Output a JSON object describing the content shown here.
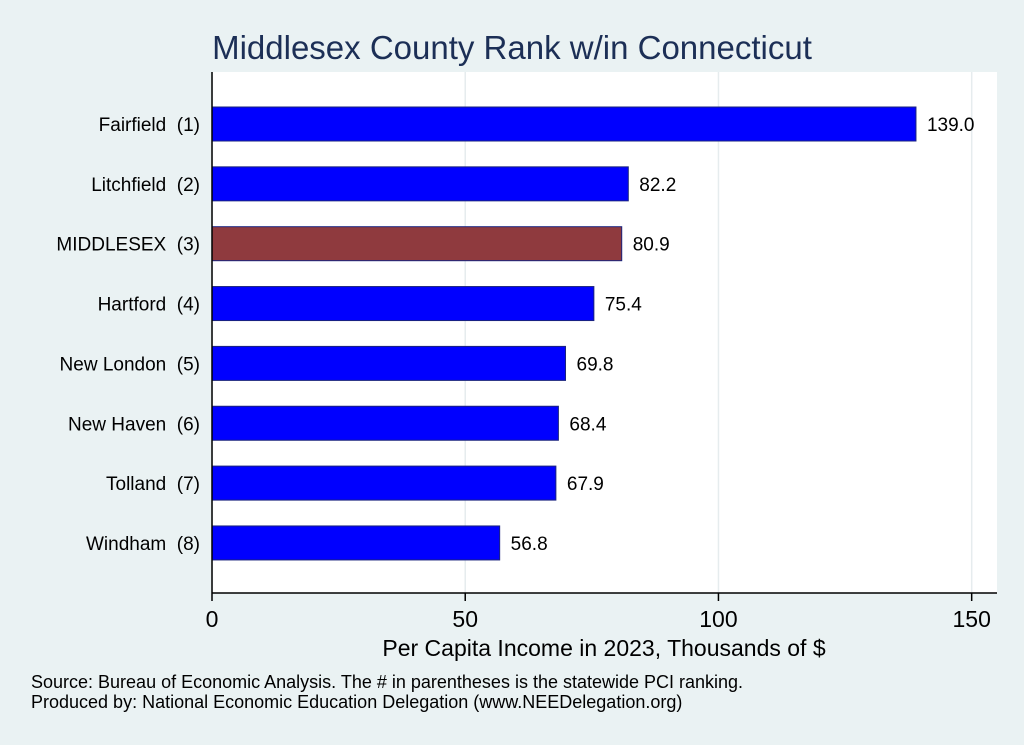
{
  "chart_data": {
    "type": "bar",
    "orientation": "horizontal",
    "title": "Middlesex County Rank w/in Connecticut",
    "categories": [
      "Fairfield  (1)",
      "Litchfield  (2)",
      "MIDDLESEX  (3)",
      "Hartford  (4)",
      "New London  (5)",
      "New Haven  (6)",
      "Tolland  (7)",
      "Windham  (8)"
    ],
    "values": [
      139.0,
      82.2,
      80.9,
      75.4,
      69.8,
      68.4,
      67.9,
      56.8
    ],
    "value_labels": [
      "139.0",
      "82.2",
      "80.9",
      "75.4",
      "69.8",
      "68.4",
      "67.9",
      "56.8"
    ],
    "highlight_index": 2,
    "xlabel": "Per Capita Income in 2023, Thousands of $",
    "ylabel": "",
    "xlim": [
      0,
      155
    ],
    "xticks": [
      0,
      50,
      100,
      150
    ],
    "xtick_labels": [
      "0",
      "50",
      "100",
      "150"
    ],
    "grid": true,
    "colors": {
      "bar": "#0000ff",
      "highlight": "#8f3a3e",
      "bar_edge": "#1a237e",
      "plot_bg": "#ffffff",
      "page_bg": "#eaf2f3",
      "title": "#1c2f56",
      "grid": "#e6ecee"
    }
  },
  "notes": {
    "source": "Source: Bureau of Economic Analysis. The # in parentheses is the statewide PCI ranking.",
    "produced_by": "Produced by: National Economic Education Delegation (www.NEEDelegation.org)"
  }
}
